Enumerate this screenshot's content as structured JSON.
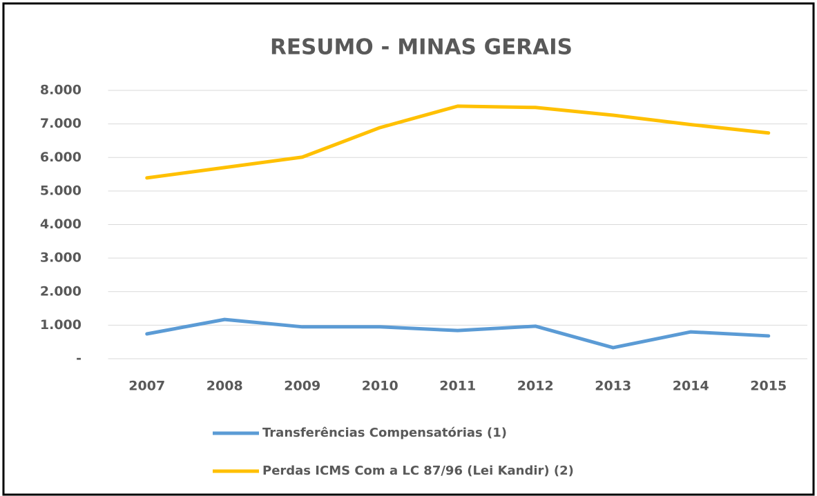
{
  "chart_data": {
    "type": "line",
    "title": "RESUMO - MINAS GERAIS",
    "categories": [
      "2007",
      "2008",
      "2009",
      "2010",
      "2011",
      "2012",
      "2013",
      "2014",
      "2015"
    ],
    "series": [
      {
        "name": "Transferências Compensatórias (1)",
        "color": "#5b9bd5",
        "values": [
          740,
          1170,
          950,
          950,
          840,
          970,
          330,
          800,
          680
        ]
      },
      {
        "name": "Perdas ICMS Com a LC 87/96 (Lei Kandir) (2)",
        "color": "#ffc000",
        "values": [
          5390,
          5700,
          6010,
          6890,
          7530,
          7490,
          7260,
          6980,
          6730
        ]
      }
    ],
    "ylim": [
      0,
      8000
    ],
    "yticks": [
      {
        "value": 0,
        "label": "-"
      },
      {
        "value": 1000,
        "label": "1.000"
      },
      {
        "value": 2000,
        "label": "2.000"
      },
      {
        "value": 3000,
        "label": "3.000"
      },
      {
        "value": 4000,
        "label": "4.000"
      },
      {
        "value": 5000,
        "label": "5.000"
      },
      {
        "value": 6000,
        "label": "6.000"
      },
      {
        "value": 7000,
        "label": "7.000"
      },
      {
        "value": 8000,
        "label": "8.000"
      }
    ],
    "grid": true,
    "legend": "bottom"
  }
}
